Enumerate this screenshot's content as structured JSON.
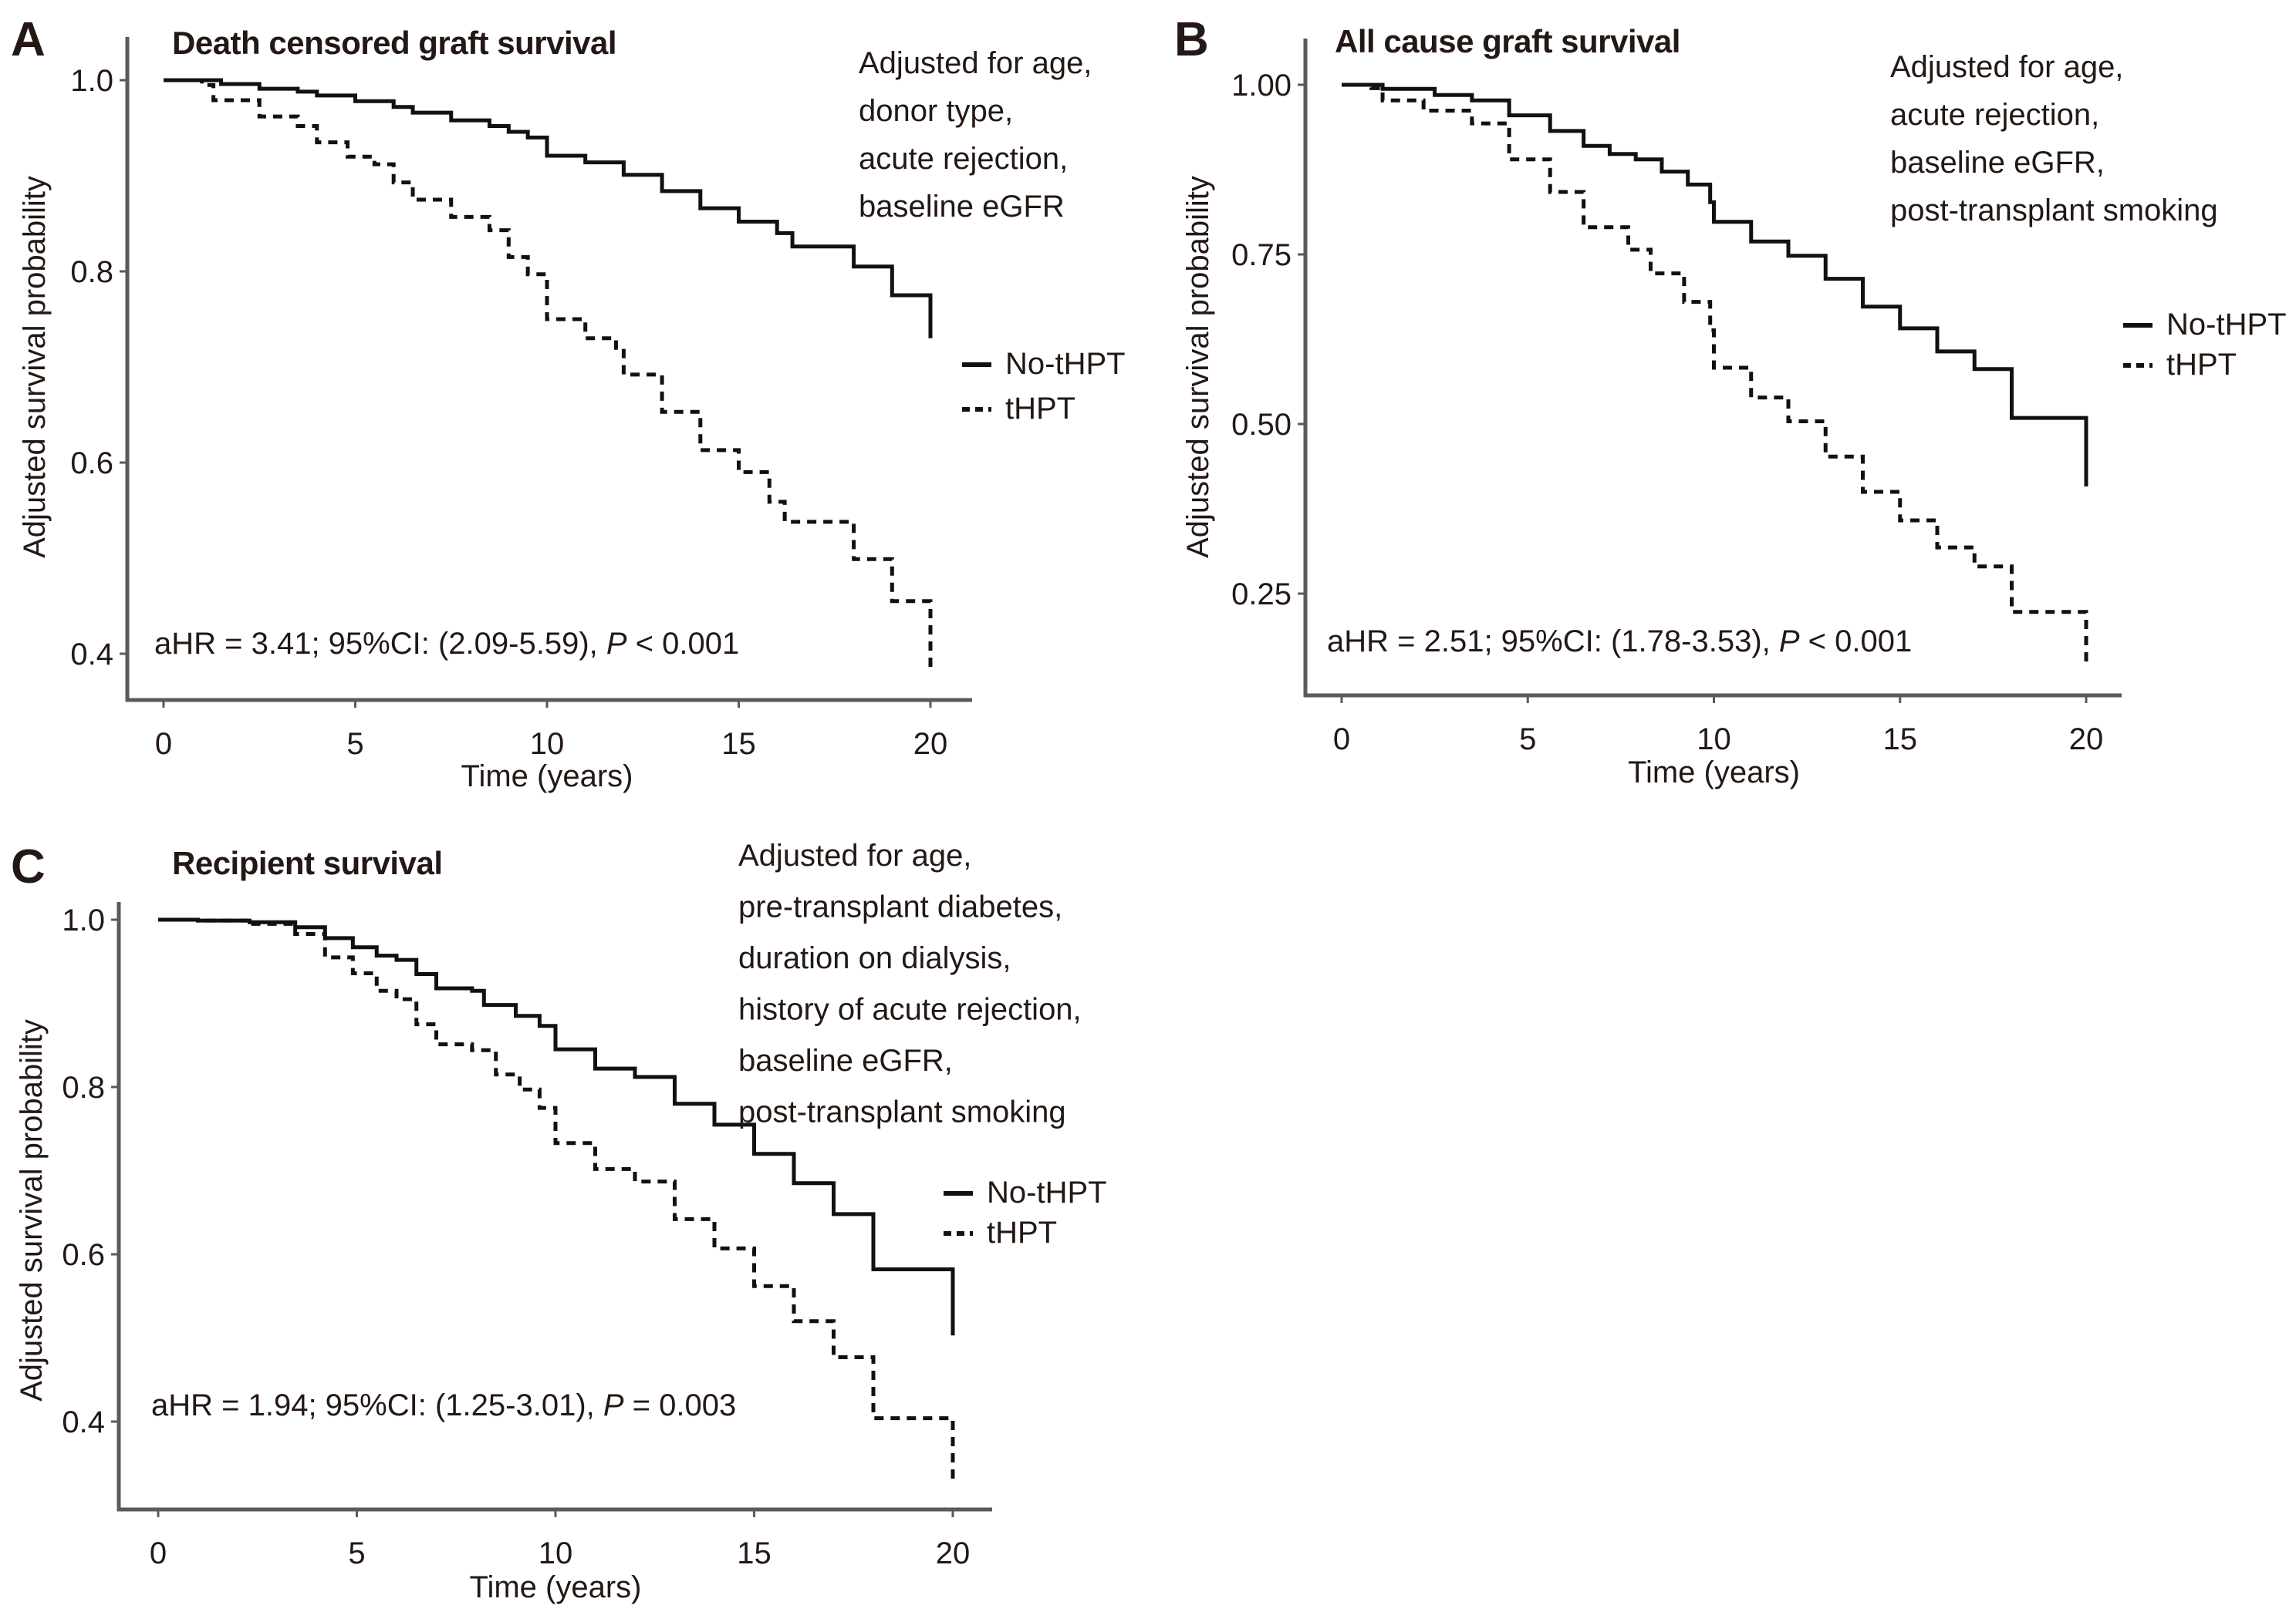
{
  "chart_data": [
    {
      "panel": "A",
      "type": "line",
      "step": true,
      "title": "Death censored graft survival",
      "xlabel": "Time (years)",
      "ylabel": "Adjusted survival probability",
      "xlim": [
        0,
        20
      ],
      "ylim": [
        0.4,
        1.0
      ],
      "xticks": [
        0,
        5,
        10,
        15,
        20
      ],
      "xtick_labels": [
        "0",
        "5",
        "10",
        "15",
        "20"
      ],
      "yticks": [
        0.4,
        0.6,
        0.8,
        1.0
      ],
      "ytick_labels": [
        "0.4",
        "0.6",
        "0.8",
        "1.0"
      ],
      "grid": false,
      "legend_position": "right",
      "annotation_lines": [
        "Adjusted for age,",
        "donor type,",
        "acute rejection,",
        "baseline eGFR"
      ],
      "stat": {
        "prefix": "aHR = 3.41; 95%CI: (2.09-5.59), ",
        "p_symbol": "P",
        "suffix": " < 0.001"
      },
      "series": [
        {
          "name": "No-tHPT",
          "style": "solid",
          "x": [
            0,
            1,
            1.5,
            2.5,
            3.5,
            4,
            5,
            6,
            6.5,
            7.5,
            8.5,
            9,
            9.5,
            10,
            11,
            12,
            13,
            14,
            15,
            16,
            16.4,
            18,
            19,
            20,
            20
          ],
          "y": [
            1.0,
            1.0,
            0.996,
            0.991,
            0.988,
            0.984,
            0.978,
            0.972,
            0.966,
            0.958,
            0.952,
            0.946,
            0.94,
            0.921,
            0.914,
            0.901,
            0.884,
            0.866,
            0.852,
            0.84,
            0.826,
            0.805,
            0.775,
            0.775,
            0.73
          ]
        },
        {
          "name": "tHPT",
          "style": "dashed",
          "x": [
            0,
            1,
            1.3,
            2.5,
            3.5,
            4,
            4.8,
            5.5,
            6,
            6.5,
            7.5,
            8.5,
            9,
            9.5,
            10,
            11,
            11.8,
            12,
            13,
            14,
            15,
            15.8,
            16.2,
            18,
            19,
            20,
            20
          ],
          "y": [
            1.0,
            0.995,
            0.979,
            0.962,
            0.952,
            0.935,
            0.92,
            0.912,
            0.893,
            0.875,
            0.857,
            0.843,
            0.815,
            0.797,
            0.75,
            0.73,
            0.72,
            0.692,
            0.653,
            0.613,
            0.59,
            0.559,
            0.538,
            0.499,
            0.455,
            0.455,
            0.386
          ]
        }
      ]
    },
    {
      "panel": "B",
      "type": "line",
      "step": true,
      "title": "All cause graft survival",
      "xlabel": "Time (years)",
      "ylabel": "Adjusted survival probability",
      "xlim": [
        0,
        20
      ],
      "ylim": [
        0.15,
        1.0
      ],
      "xticks": [
        0,
        5,
        10,
        15,
        20
      ],
      "xtick_labels": [
        "0",
        "5",
        "10",
        "15",
        "20"
      ],
      "yticks": [
        0.25,
        0.5,
        0.75,
        1.0
      ],
      "ytick_labels": [
        "0.25",
        "0.50",
        "0.75",
        "1.00"
      ],
      "grid": false,
      "legend_position": "right",
      "annotation_lines": [
        "Adjusted for age,",
        "acute rejection,",
        "baseline eGFR,",
        "post-transplant smoking"
      ],
      "stat": {
        "prefix": "aHR = 2.51; 95%CI: (1.78-3.53), ",
        "p_symbol": "P",
        "suffix": " < 0.001"
      },
      "series": [
        {
          "name": "No-tHPT",
          "style": "solid",
          "x": [
            0,
            1,
            1.1,
            2.5,
            3.5,
            4.5,
            5.6,
            6.5,
            7.2,
            7.9,
            8.6,
            9.3,
            9.9,
            10,
            11,
            12,
            13,
            14,
            15,
            16,
            17,
            18,
            20,
            20
          ],
          "y": [
            1.0,
            1.0,
            0.994,
            0.985,
            0.977,
            0.955,
            0.932,
            0.91,
            0.898,
            0.89,
            0.872,
            0.853,
            0.827,
            0.798,
            0.769,
            0.748,
            0.714,
            0.673,
            0.641,
            0.607,
            0.581,
            0.509,
            0.509,
            0.408
          ]
        },
        {
          "name": "tHPT",
          "style": "dashed",
          "x": [
            0,
            0.8,
            1.1,
            2.2,
            3.5,
            4.5,
            5.6,
            6.5,
            7.7,
            8.3,
            9.2,
            9.9,
            10,
            11,
            12,
            13,
            14,
            15,
            16,
            17,
            18,
            20,
            20
          ],
          "y": [
            1.0,
            0.995,
            0.977,
            0.962,
            0.943,
            0.89,
            0.842,
            0.79,
            0.757,
            0.722,
            0.68,
            0.638,
            0.583,
            0.539,
            0.504,
            0.452,
            0.4,
            0.358,
            0.318,
            0.29,
            0.223,
            0.223,
            0.14
          ]
        }
      ]
    },
    {
      "panel": "C",
      "type": "line",
      "step": true,
      "title": "Recipient survival",
      "xlabel": "Time (years)",
      "ylabel": "Adjusted survival probability",
      "xlim": [
        0,
        20
      ],
      "ylim": [
        0.32,
        1.0
      ],
      "xticks": [
        0,
        5,
        10,
        15,
        20
      ],
      "xtick_labels": [
        "0",
        "5",
        "10",
        "15",
        "20"
      ],
      "yticks": [
        0.4,
        0.6,
        0.8,
        1.0
      ],
      "ytick_labels": [
        "0.4",
        "0.6",
        "0.8",
        "1.0"
      ],
      "grid": false,
      "legend_position": "right",
      "annotation_lines": [
        "Adjusted for age,",
        "pre-transplant diabetes,",
        "duration on dialysis,",
        "history of acute rejection,",
        "baseline eGFR,",
        "post-transplant smoking"
      ],
      "stat": {
        "prefix": "aHR = 1.94; 95%CI: (1.25-3.01), ",
        "p_symbol": "P",
        "suffix": " = 0.003"
      },
      "series": [
        {
          "name": "No-tHPT",
          "style": "solid",
          "x": [
            0,
            1,
            2.3,
            3.45,
            4.2,
            4.9,
            5.5,
            6,
            6.5,
            7,
            7.9,
            8.2,
            9,
            9.6,
            10,
            11,
            12,
            13,
            14,
            15,
            16,
            17,
            18,
            20,
            20
          ],
          "y": [
            1.0,
            0.999,
            0.997,
            0.991,
            0.978,
            0.967,
            0.957,
            0.952,
            0.935,
            0.918,
            0.915,
            0.898,
            0.885,
            0.873,
            0.845,
            0.822,
            0.812,
            0.78,
            0.755,
            0.72,
            0.685,
            0.648,
            0.582,
            0.582,
            0.503
          ]
        },
        {
          "name": "tHPT",
          "style": "dashed",
          "x": [
            0,
            1,
            2.3,
            3.45,
            4.2,
            4.9,
            5.5,
            6,
            6.5,
            7,
            7.9,
            8.5,
            9.1,
            9.6,
            10,
            11,
            12,
            13,
            14,
            15,
            16,
            17,
            18,
            20,
            20
          ],
          "y": [
            1.0,
            0.999,
            0.995,
            0.983,
            0.955,
            0.936,
            0.915,
            0.905,
            0.875,
            0.851,
            0.844,
            0.815,
            0.797,
            0.775,
            0.733,
            0.702,
            0.687,
            0.642,
            0.607,
            0.562,
            0.52,
            0.477,
            0.404,
            0.404,
            0.326
          ]
        }
      ]
    }
  ]
}
